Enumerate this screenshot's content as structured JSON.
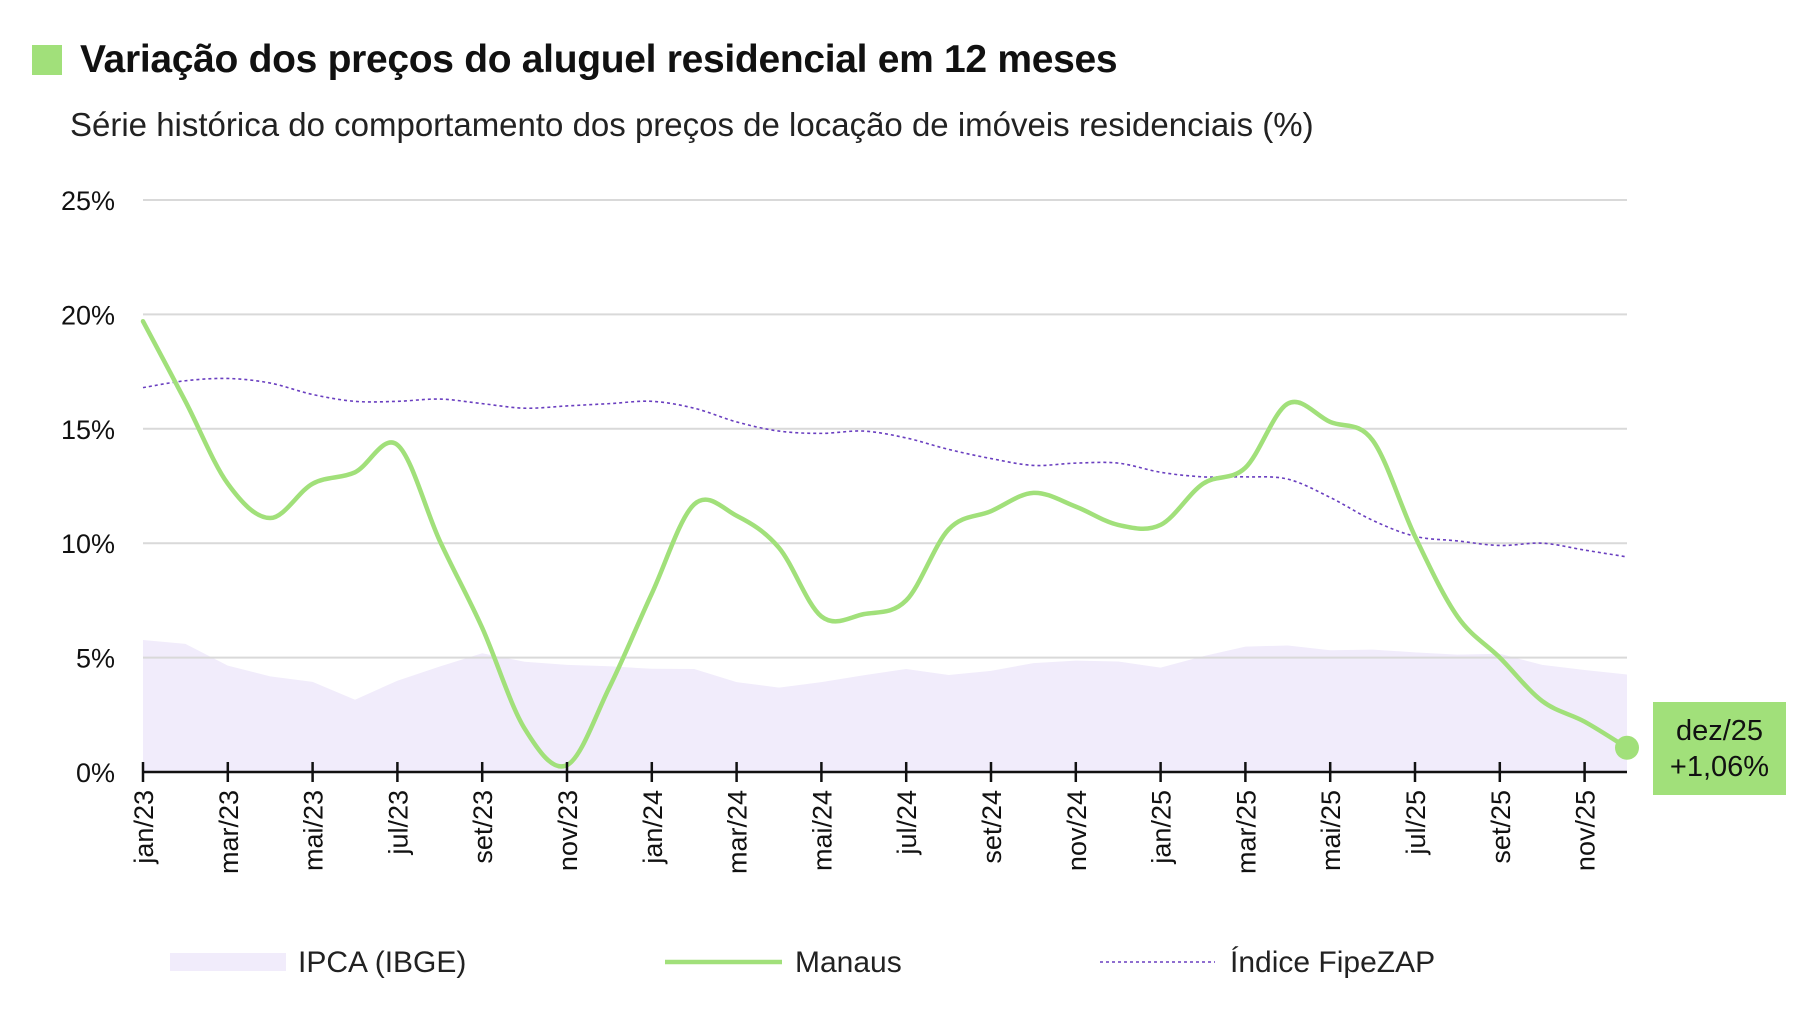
{
  "title": "Variação dos preços do aluguel residencial em 12 meses",
  "subtitle": "Série histórica do comportamento dos preços de locação de imóveis residenciais (%)",
  "colors": {
    "accent": "#a1e07a",
    "manaus": "#a1e07a",
    "fipezap": "#6a3fc0",
    "ipca": "#f1ecfb",
    "grid": "#d9d9d9"
  },
  "callout": {
    "date": "dez/25",
    "value": "+1,06%"
  },
  "chart_data": {
    "type": "line",
    "title": "Variação dos preços do aluguel residencial em 12 meses",
    "subtitle": "Série histórica do comportamento dos preços de locação de imóveis residenciais (%)",
    "ylim": [
      0,
      25
    ],
    "yticks": [
      0,
      5,
      10,
      15,
      20,
      25
    ],
    "ytick_labels": [
      "0%",
      "5%",
      "10%",
      "15%",
      "20%",
      "25%"
    ],
    "grid": true,
    "legend_position": "bottom",
    "x": [
      "jan/23",
      "fev/23",
      "mar/23",
      "abr/23",
      "mai/23",
      "jun/23",
      "jul/23",
      "ago/23",
      "set/23",
      "out/23",
      "nov/23",
      "dez/23",
      "jan/24",
      "fev/24",
      "mar/24",
      "abr/24",
      "mai/24",
      "jun/24",
      "jul/24",
      "ago/24",
      "set/24",
      "out/24",
      "nov/24",
      "dez/24",
      "jan/25",
      "fev/25",
      "mar/25",
      "abr/25",
      "mai/25",
      "jun/25",
      "jul/25",
      "ago/25",
      "set/25",
      "out/25",
      "nov/25",
      "dez/25"
    ],
    "xtick_labels": [
      "jan/23",
      "mar/23",
      "mai/23",
      "jul/23",
      "set/23",
      "nov/23",
      "jan/24",
      "mar/24",
      "mai/24",
      "jul/24",
      "set/24",
      "nov/24",
      "jan/25",
      "mar/25",
      "mai/25",
      "jul/25",
      "set/25",
      "nov/25"
    ],
    "series": [
      {
        "name": "IPCA (IBGE)",
        "style": "area",
        "values": [
          5.77,
          5.6,
          4.65,
          4.18,
          3.94,
          3.16,
          3.99,
          4.61,
          5.19,
          4.82,
          4.68,
          4.62,
          4.51,
          4.5,
          3.93,
          3.69,
          3.93,
          4.23,
          4.5,
          4.24,
          4.42,
          4.76,
          4.87,
          4.83,
          4.56,
          5.06,
          5.48,
          5.53,
          5.32,
          5.35,
          5.23,
          5.13,
          5.17,
          4.68,
          4.46,
          4.26
        ]
      },
      {
        "name": "Manaus",
        "style": "solid",
        "values": [
          19.7,
          16.2,
          12.6,
          11.1,
          12.6,
          13.1,
          14.3,
          10.1,
          6.3,
          1.9,
          0.3,
          3.7,
          7.8,
          11.7,
          11.2,
          9.8,
          6.8,
          6.9,
          7.5,
          10.6,
          11.4,
          12.2,
          11.6,
          10.8,
          10.8,
          12.6,
          13.3,
          16.1,
          15.3,
          14.5,
          10.3,
          6.8,
          5.0,
          3.1,
          2.2,
          1.06
        ]
      },
      {
        "name": "Índice FipeZAP",
        "style": "dotted",
        "values": [
          16.8,
          17.1,
          17.2,
          17.0,
          16.5,
          16.2,
          16.2,
          16.3,
          16.1,
          15.9,
          16.0,
          16.1,
          16.2,
          15.9,
          15.3,
          14.9,
          14.8,
          14.9,
          14.6,
          14.1,
          13.7,
          13.4,
          13.5,
          13.5,
          13.1,
          12.9,
          12.9,
          12.8,
          12.0,
          11.0,
          10.3,
          10.1,
          9.9,
          10.0,
          9.7,
          9.4
        ]
      }
    ]
  }
}
